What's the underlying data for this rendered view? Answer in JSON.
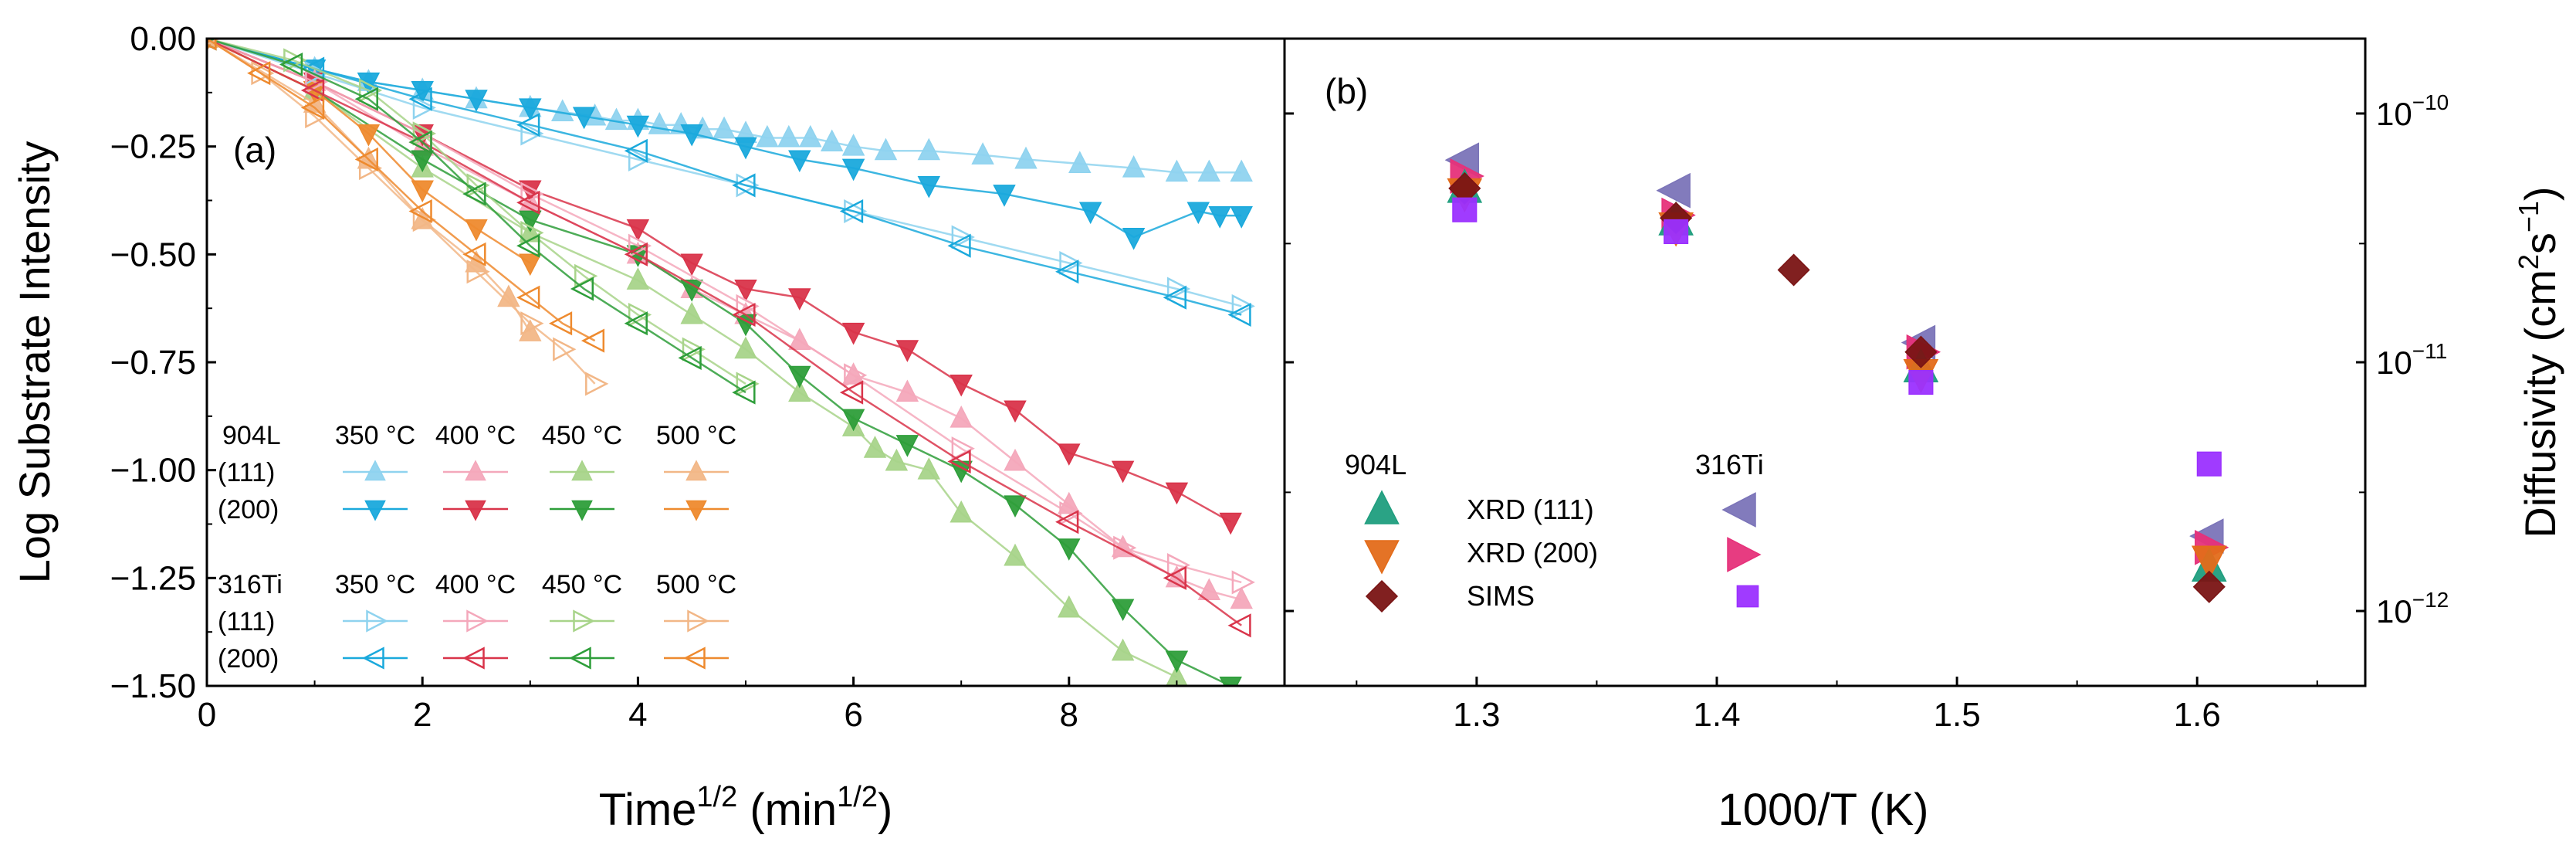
{
  "chart_data": [
    {
      "panel": "(a)",
      "type": "line",
      "xlabel": "Time",
      "xlabel_sup": "1/2",
      "xunit": " (min",
      "xunit_sup": "1/2",
      "xunit_close": ")",
      "ylabel": "Log Substrate Intensity",
      "xlim": [
        0,
        10
      ],
      "ylim": [
        -1.5,
        0
      ],
      "xticks": [
        "0",
        "2",
        "4",
        "6",
        "8"
      ],
      "yticks": [
        "0.00",
        "−0.25",
        "−0.50",
        "−0.75",
        "−1.00",
        "−1.25",
        "−1.50"
      ],
      "legend": {
        "col_headers": [
          "350 °C",
          "400 °C",
          "450 °C",
          "500 °C"
        ],
        "groups": [
          {
            "material": "904L",
            "rows": [
              "(111)",
              "(200)"
            ]
          },
          {
            "material": "316Ti",
            "rows": [
              "(111)",
              "(200)"
            ]
          }
        ]
      },
      "colors": {
        "350_111": "#8fd3ef",
        "350_200": "#1aa9dc",
        "400_111": "#f4a8bb",
        "400_200": "#d9344a",
        "450_111": "#a8d48a",
        "450_200": "#2e9e3a",
        "500_111": "#f2b787",
        "500_200": "#ee8a2e"
      },
      "series": [
        {
          "name": "904L (111) 350 °C",
          "key": "350_111",
          "marker": "tri-up",
          "filled": true,
          "x": [
            0,
            1,
            1.5,
            2,
            2.5,
            3,
            3.3,
            3.6,
            3.8,
            4,
            4.2,
            4.4,
            4.6,
            4.8,
            5,
            5.2,
            5.4,
            5.6,
            5.8,
            6,
            6.3,
            6.7,
            7.2,
            7.6,
            8.1,
            8.6,
            9,
            9.3,
            9.6
          ],
          "y": [
            0,
            -0.07,
            -0.1,
            -0.12,
            -0.14,
            -0.16,
            -0.17,
            -0.18,
            -0.19,
            -0.19,
            -0.2,
            -0.2,
            -0.21,
            -0.21,
            -0.22,
            -0.23,
            -0.23,
            -0.23,
            -0.24,
            -0.25,
            -0.26,
            -0.26,
            -0.27,
            -0.28,
            -0.29,
            -0.3,
            -0.31,
            -0.31,
            -0.31
          ]
        },
        {
          "name": "904L (200) 350 °C",
          "key": "350_200",
          "marker": "tri-down",
          "filled": true,
          "x": [
            0,
            1,
            1.5,
            2,
            2.5,
            3,
            3.5,
            4,
            4.5,
            5,
            5.5,
            6,
            6.7,
            7.4,
            8.2,
            8.6,
            9.2,
            9.4,
            9.6
          ],
          "y": [
            0,
            -0.07,
            -0.1,
            -0.12,
            -0.14,
            -0.16,
            -0.18,
            -0.2,
            -0.22,
            -0.25,
            -0.28,
            -0.3,
            -0.34,
            -0.36,
            -0.4,
            -0.46,
            -0.4,
            -0.41,
            -0.41
          ]
        },
        {
          "name": "904L (111) 400 °C",
          "key": "400_111",
          "marker": "tri-up",
          "filled": true,
          "x": [
            0,
            1,
            2,
            3,
            4,
            4.5,
            5,
            5.5,
            6,
            6.5,
            7,
            7.5,
            8,
            8.5,
            9,
            9.3,
            9.6
          ],
          "y": [
            0,
            -0.1,
            -0.25,
            -0.38,
            -0.5,
            -0.58,
            -0.64,
            -0.7,
            -0.78,
            -0.82,
            -0.88,
            -0.98,
            -1.08,
            -1.18,
            -1.25,
            -1.28,
            -1.3
          ]
        },
        {
          "name": "904L (200) 400 °C",
          "key": "400_200",
          "marker": "tri-down",
          "filled": true,
          "x": [
            0,
            1,
            2,
            3,
            4,
            4.5,
            5,
            5.5,
            6,
            6.5,
            7,
            7.5,
            8,
            8.5,
            9,
            9.5
          ],
          "y": [
            0,
            -0.1,
            -0.22,
            -0.35,
            -0.44,
            -0.52,
            -0.58,
            -0.6,
            -0.68,
            -0.72,
            -0.8,
            -0.86,
            -0.96,
            -1.0,
            -1.05,
            -1.12
          ]
        },
        {
          "name": "904L (111) 450 °C",
          "key": "450_111",
          "marker": "tri-up",
          "filled": true,
          "x": [
            0,
            1,
            2,
            3,
            4,
            4.5,
            5,
            5.5,
            6,
            6.2,
            6.4,
            6.7,
            7,
            7.5,
            8,
            8.5,
            9
          ],
          "y": [
            0,
            -0.12,
            -0.3,
            -0.45,
            -0.56,
            -0.64,
            -0.72,
            -0.82,
            -0.9,
            -0.95,
            -0.98,
            -1.0,
            -1.1,
            -1.2,
            -1.32,
            -1.42,
            -1.48
          ]
        },
        {
          "name": "904L (200) 450 °C",
          "key": "450_200",
          "marker": "tri-down",
          "filled": true,
          "x": [
            0,
            1,
            2,
            3,
            4,
            4.5,
            5,
            5.5,
            6,
            6.5,
            7,
            7.5,
            8,
            8.5,
            9,
            9.5
          ],
          "y": [
            0,
            -0.12,
            -0.28,
            -0.42,
            -0.5,
            -0.58,
            -0.66,
            -0.78,
            -0.88,
            -0.94,
            -1.0,
            -1.08,
            -1.18,
            -1.32,
            -1.44,
            -1.5
          ]
        },
        {
          "name": "904L (111) 500 °C",
          "key": "500_111",
          "marker": "tri-up",
          "filled": true,
          "x": [
            0,
            1,
            1.5,
            2,
            2.5,
            2.8,
            3
          ],
          "y": [
            0,
            -0.15,
            -0.28,
            -0.42,
            -0.52,
            -0.6,
            -0.68
          ]
        },
        {
          "name": "904L (200) 500 °C",
          "key": "500_200",
          "marker": "tri-down",
          "filled": true,
          "x": [
            0,
            1,
            1.5,
            2,
            2.5,
            3
          ],
          "y": [
            0,
            -0.12,
            -0.22,
            -0.35,
            -0.44,
            -0.52
          ]
        },
        {
          "name": "316Ti (111) 350 °C",
          "key": "350_111",
          "marker": "tri-right",
          "filled": false,
          "x": [
            0,
            1,
            2,
            3,
            4,
            5,
            6,
            7,
            8,
            9,
            9.6
          ],
          "y": [
            0,
            -0.08,
            -0.16,
            -0.22,
            -0.28,
            -0.34,
            -0.4,
            -0.46,
            -0.52,
            -0.58,
            -0.62
          ]
        },
        {
          "name": "316Ti (200) 350 °C",
          "key": "350_200",
          "marker": "tri-left",
          "filled": false,
          "x": [
            0,
            1,
            2,
            3,
            4,
            5,
            6,
            7,
            8,
            9,
            9.6
          ],
          "y": [
            0,
            -0.07,
            -0.14,
            -0.2,
            -0.26,
            -0.34,
            -0.4,
            -0.48,
            -0.54,
            -0.6,
            -0.64
          ]
        },
        {
          "name": "316Ti (111) 400 °C",
          "key": "400_111",
          "marker": "tri-right",
          "filled": false,
          "x": [
            0,
            1,
            2,
            3,
            4,
            5,
            6,
            7,
            8,
            8.5,
            9,
            9.6
          ],
          "y": [
            0,
            -0.1,
            -0.22,
            -0.36,
            -0.48,
            -0.62,
            -0.78,
            -0.95,
            -1.1,
            -1.18,
            -1.22,
            -1.26
          ]
        },
        {
          "name": "316Ti (200) 400 °C",
          "key": "400_200",
          "marker": "tri-left",
          "filled": false,
          "x": [
            0,
            1,
            2,
            3,
            4,
            5,
            6,
            7,
            8,
            9,
            9.6
          ],
          "y": [
            0,
            -0.12,
            -0.24,
            -0.38,
            -0.5,
            -0.64,
            -0.82,
            -0.98,
            -1.12,
            -1.25,
            -1.36
          ]
        },
        {
          "name": "316Ti (111) 450 °C",
          "key": "450_111",
          "marker": "tri-right",
          "filled": false,
          "x": [
            0,
            0.8,
            1.5,
            2,
            2.5,
            3,
            3.5,
            4,
            4.5,
            5
          ],
          "y": [
            0,
            -0.05,
            -0.12,
            -0.22,
            -0.34,
            -0.45,
            -0.55,
            -0.64,
            -0.72,
            -0.8
          ]
        },
        {
          "name": "316Ti (200) 450 °C",
          "key": "450_200",
          "marker": "tri-left",
          "filled": false,
          "x": [
            0,
            0.8,
            1.5,
            2,
            2.5,
            3,
            3.5,
            4,
            4.5,
            5
          ],
          "y": [
            0,
            -0.06,
            -0.14,
            -0.24,
            -0.36,
            -0.48,
            -0.58,
            -0.66,
            -0.74,
            -0.82
          ]
        },
        {
          "name": "316Ti (111) 500 °C",
          "key": "500_111",
          "marker": "tri-right",
          "filled": false,
          "x": [
            0,
            0.5,
            1,
            1.5,
            2,
            2.5,
            3,
            3.3,
            3.6
          ],
          "y": [
            0,
            -0.08,
            -0.18,
            -0.3,
            -0.42,
            -0.54,
            -0.66,
            -0.72,
            -0.8
          ]
        },
        {
          "name": "316Ti (200) 500 °C",
          "key": "500_200",
          "marker": "tri-left",
          "filled": false,
          "x": [
            0,
            0.5,
            1,
            1.5,
            2,
            2.5,
            3,
            3.3,
            3.6
          ],
          "y": [
            0,
            -0.08,
            -0.16,
            -0.28,
            -0.4,
            -0.5,
            -0.6,
            -0.66,
            -0.7
          ]
        }
      ]
    },
    {
      "panel": "(b)",
      "type": "scatter",
      "xlabel": "1000/T (K)",
      "ylabel": "Diffusivity (cm",
      "ylabel_sup1": "2",
      "ylabel_mid": "s",
      "ylabel_sup2": "−1",
      "ylabel_close": ")",
      "yscale": "log",
      "xlim": [
        1.22,
        1.67
      ],
      "ylim": [
        5e-13,
        2e-10
      ],
      "xticks": [
        "1.3",
        "1.4",
        "1.5",
        "1.6"
      ],
      "xtick_values": [
        1.3,
        1.4,
        1.5,
        1.6
      ],
      "ytick_values": [
        1e-10,
        1e-11,
        1e-12
      ],
      "ytick_base": "10",
      "ytick_exps": [
        "−10",
        "−11",
        "−12"
      ],
      "legend": {
        "col_headers": [
          "904L",
          "316Ti"
        ],
        "rows": [
          "XRD (111)",
          "XRD (200)",
          "SIMS"
        ]
      },
      "colors": {
        "904L_111": "#1f9e7e",
        "904L_200": "#e36c1a",
        "904L_SIMS": "#7a1414",
        "316Ti_111": "#7b74b8",
        "316Ti_200": "#e6317a",
        "316Ti_SIMS": "#9b30ff"
      },
      "series": [
        {
          "name": "904L XRD (111)",
          "key": "904L_111",
          "marker": "tri-up",
          "x": [
            1.295,
            1.383,
            1.485,
            1.605
          ],
          "y": [
            5e-11,
            3.7e-11,
            9.5e-12,
            1.5e-12
          ]
        },
        {
          "name": "904L XRD (200)",
          "key": "904L_200",
          "marker": "tri-down",
          "x": [
            1.295,
            1.383,
            1.485,
            1.605
          ],
          "y": [
            4.8e-11,
            3.5e-11,
            9e-12,
            1.6e-12
          ]
        },
        {
          "name": "316Ti XRD (111)",
          "key": "316Ti_111",
          "marker": "tri-left",
          "x": [
            1.295,
            1.383,
            1.485,
            1.605
          ],
          "y": [
            6.5e-11,
            4.9e-11,
            1.2e-11,
            2e-12
          ]
        },
        {
          "name": "316Ti XRD (200)",
          "key": "316Ti_200",
          "marker": "tri-right",
          "x": [
            1.295,
            1.383,
            1.485,
            1.605
          ],
          "y": [
            5.6e-11,
            3.9e-11,
            1.1e-11,
            1.8e-12
          ]
        },
        {
          "name": "904L SIMS",
          "key": "904L_SIMS",
          "marker": "diamond",
          "x": [
            1.295,
            1.383,
            1.432,
            1.485,
            1.605
          ],
          "y": [
            5e-11,
            3.8e-11,
            2.35e-11,
            1.1e-11,
            1.25e-12
          ]
        },
        {
          "name": "316Ti SIMS",
          "key": "316Ti_SIMS",
          "marker": "square",
          "x": [
            1.295,
            1.383,
            1.485,
            1.605
          ],
          "y": [
            4.1e-11,
            3.35e-11,
            8.3e-12,
            3.9e-12
          ]
        }
      ]
    }
  ]
}
